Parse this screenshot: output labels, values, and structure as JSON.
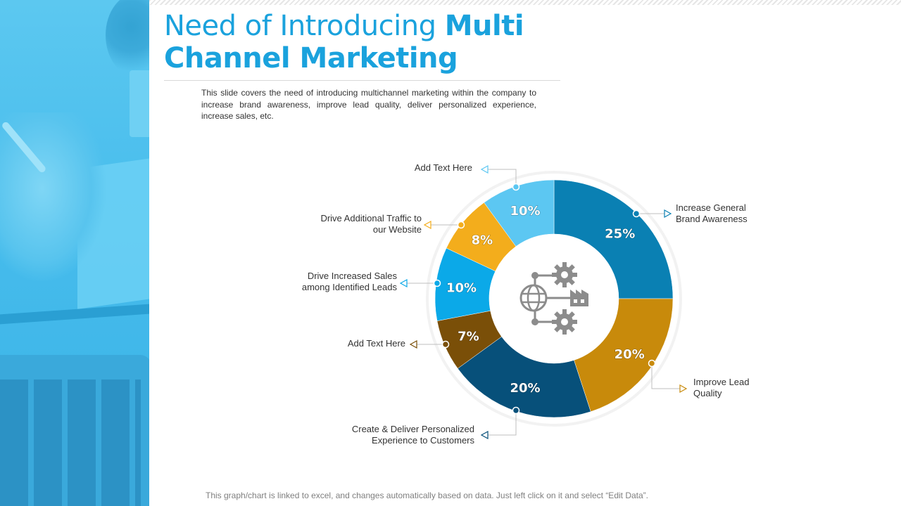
{
  "slide": {
    "title_light": "Need of Introducing",
    "title_bold_1": "Multi",
    "title_bold_2": "Channel Marketing",
    "description": "This slide covers the need of introducing multichannel marketing within the company to increase brand awareness, improve lead quality, deliver personalized experience, increase sales, etc.",
    "footnote": "This graph/chart is linked to excel, and changes automatically based on data. Just left click on it and select “Edit Data”."
  },
  "colors": {
    "accent": "#1aa2dd",
    "ring": "#f2f2f2",
    "icon": "#8c8c8c"
  },
  "center_icon": "globe-network-gears-icon",
  "chart_data": {
    "type": "donut",
    "start_angle_deg": 0,
    "direction": "clockwise",
    "slices": [
      {
        "label_lines": [
          "Increase General",
          "Brand Awareness"
        ],
        "value": 25,
        "display": "25%",
        "color": "#0a80b3"
      },
      {
        "label_lines": [
          "Improve Lead",
          "Quality"
        ],
        "value": 20,
        "display": "20%",
        "color": "#c88a0b"
      },
      {
        "label_lines": [
          "Create & Deliver Personalized",
          "Experience to Customers"
        ],
        "value": 20,
        "display": "20%",
        "color": "#07507a"
      },
      {
        "label_lines": [
          "Add Text Here"
        ],
        "value": 7,
        "display": "7%",
        "color": "#7a4f08"
      },
      {
        "label_lines": [
          "Drive Increased Sales",
          "among Identified Leads"
        ],
        "value": 10,
        "display": "10%",
        "color": "#0ba9e8"
      },
      {
        "label_lines": [
          "Drive Additional Traffic to",
          "our Website"
        ],
        "value": 8,
        "display": "8%",
        "color": "#f3ad1c"
      },
      {
        "label_lines": [
          "Add Text Here"
        ],
        "value": 10,
        "display": "10%",
        "color": "#5cc7f2"
      }
    ]
  }
}
